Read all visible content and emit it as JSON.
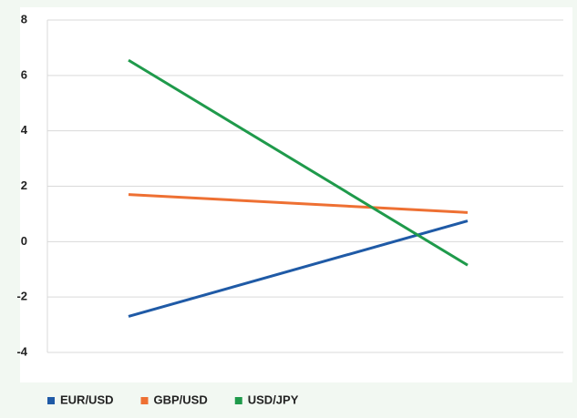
{
  "chart_data": {
    "type": "line",
    "categories": [
      null,
      null
    ],
    "series": [
      {
        "name": "EUR/USD",
        "color": "#1f5aa6",
        "values": [
          -2.7,
          0.75
        ]
      },
      {
        "name": "GBP/USD",
        "color": "#ee7033",
        "values": [
          1.7,
          1.05
        ]
      },
      {
        "name": "USD/JPY",
        "color": "#1f9a4b",
        "values": [
          6.55,
          -0.85
        ]
      }
    ],
    "ylim": [
      -4,
      8
    ],
    "yticks": [
      -4,
      -2,
      0,
      2,
      4,
      6,
      8
    ],
    "grid": true,
    "legend": "bottom"
  }
}
